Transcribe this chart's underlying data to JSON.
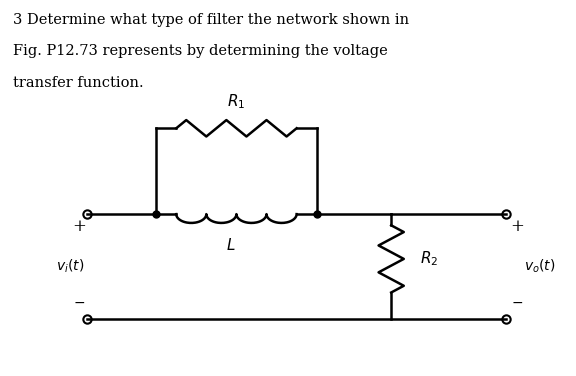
{
  "title_lines": [
    "3 Determine what type of filter the network shown in",
    "Fig. P12.73 represents by determining the voltage",
    "transfer function."
  ],
  "bg_color": "#ffffff",
  "text_color": "#000000",
  "fig_width": 5.76,
  "fig_height": 3.76,
  "dpi": 100
}
